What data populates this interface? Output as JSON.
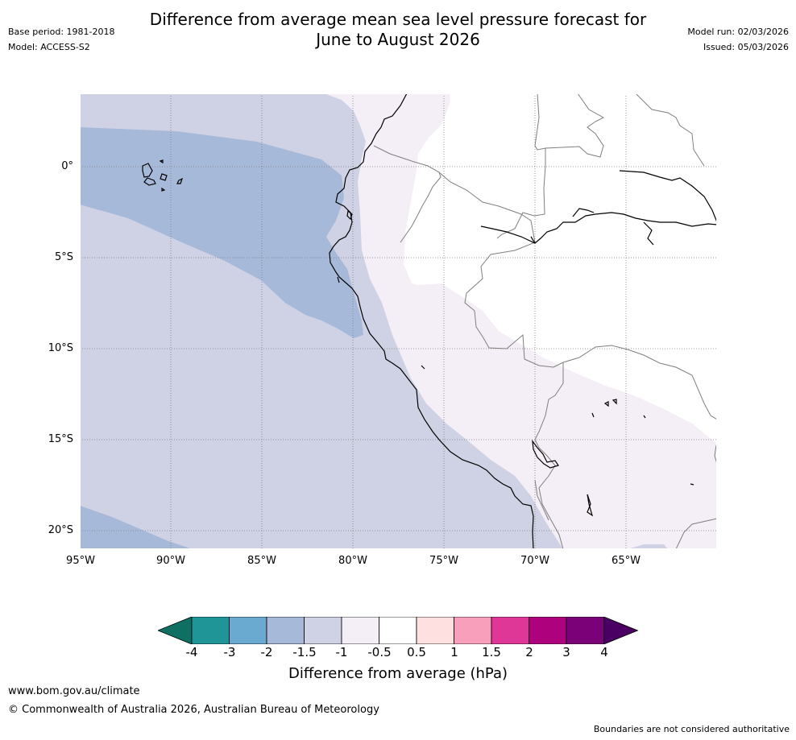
{
  "header": {
    "title_line1": "Difference from average mean sea level pressure forecast for",
    "title_line2": "June to August 2026",
    "base_period": "Base period: 1981-2018",
    "model": "Model: ACCESS-S2",
    "model_run": "Model run: 02/03/2026",
    "issued": "Issued: 05/03/2026"
  },
  "map": {
    "lat_labels": [
      "0°",
      "5°S",
      "10°S",
      "15°S",
      "20°S"
    ],
    "lon_labels": [
      "95°W",
      "90°W",
      "85°W",
      "80°W",
      "75°W",
      "70°W",
      "65°W"
    ],
    "region_extent": {
      "lon_min": -95,
      "lon_max": -60,
      "lat_min": -21,
      "lat_max": 4
    },
    "colors": {
      "band_-2_-1.5": "#a7b9d9",
      "band_-1.5_-1": "#cfd1e5",
      "band_-1_-0.5": "#f4eef6",
      "band_-0.5_0.5": "#ffffff",
      "coastline": "#000000",
      "borders": "#7f7f7f",
      "gridlines": "#7f7f7f"
    }
  },
  "legend": {
    "tick_labels": [
      "-4",
      "-3",
      "-2",
      "-1.5",
      "-1",
      "-0.5",
      "0.5",
      "1",
      "1.5",
      "2",
      "3",
      "4"
    ],
    "colors": [
      "#0f6f63",
      "#1f9598",
      "#6aaad1",
      "#a7b9d9",
      "#cfd1e5",
      "#f4eef6",
      "#ffffff",
      "#fde0df",
      "#f8a0bb",
      "#df3797",
      "#ad017e",
      "#7a0177",
      "#4a0062"
    ],
    "label": "Difference from average (hPa)"
  },
  "footer": {
    "url": "www.bom.gov.au/climate",
    "copyright": "© Commonwealth of Australia 2026, Australian Bureau of Meteorology",
    "note": "Boundaries are not considered authoritative"
  }
}
